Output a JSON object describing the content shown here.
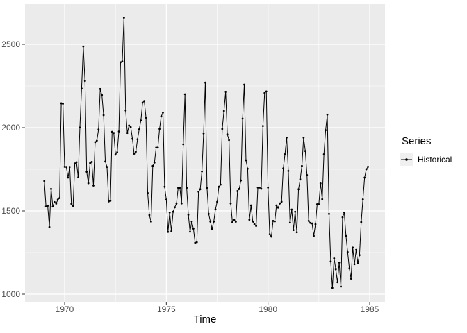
{
  "chart_data": {
    "type": "line",
    "title": "",
    "xlabel": "Time",
    "ylabel": "",
    "legend_title": "Series",
    "legend_position": "right",
    "grid": true,
    "x_start_year": 1969,
    "frequency": "monthly",
    "x_ticks": [
      1970,
      1975,
      1980,
      1985
    ],
    "x_minor_ticks": [
      1972.5,
      1977.5,
      1982.5
    ],
    "y_ticks": [
      1000,
      1500,
      2000,
      2500
    ],
    "y_minor_ticks": [
      1250,
      1750,
      2250
    ],
    "xlim": [
      1968.05,
      1985.75
    ],
    "ylim": [
      954,
      2742
    ],
    "series": [
      {
        "name": "Historical",
        "values": [
          1679,
          1527,
          1530,
          1403,
          1632,
          1526,
          1553,
          1544,
          1568,
          1577,
          2146,
          2143,
          1765,
          1764,
          1700,
          1764,
          1542,
          1530,
          1785,
          1792,
          1702,
          2001,
          2235,
          2487,
          2280,
          1735,
          1666,
          1787,
          1794,
          1652,
          1913,
          1922,
          1989,
          2232,
          2195,
          2075,
          1797,
          1764,
          1557,
          1561,
          1975,
          1968,
          1838,
          1852,
          1977,
          2392,
          2398,
          2660,
          2103,
          1968,
          2013,
          2003,
          1933,
          1843,
          1855,
          1930,
          1990,
          2043,
          2150,
          2160,
          2060,
          1607,
          1475,
          1436,
          1770,
          1790,
          1880,
          1880,
          1992,
          2068,
          2090,
          1645,
          1568,
          1374,
          1490,
          1378,
          1495,
          1522,
          1545,
          1638,
          1638,
          1545,
          1900,
          2200,
          1638,
          1477,
          1375,
          1436,
          1393,
          1309,
          1312,
          1615,
          1630,
          1737,
          1965,
          2270,
          1638,
          1482,
          1436,
          1392,
          1436,
          1510,
          1554,
          1645,
          1658,
          1992,
          2100,
          2215,
          1960,
          1925,
          1545,
          1432,
          1448,
          1435,
          1619,
          1632,
          1683,
          2054,
          2258,
          1804,
          1753,
          1447,
          1533,
          1437,
          1420,
          1410,
          1640,
          1640,
          1633,
          2010,
          2208,
          2217,
          1640,
          1360,
          1346,
          1440,
          1437,
          1533,
          1520,
          1545,
          1555,
          1755,
          1840,
          1940,
          1740,
          1430,
          1508,
          1385,
          1495,
          1372,
          1630,
          1690,
          1770,
          1940,
          1860,
          1715,
          1440,
          1428,
          1425,
          1350,
          1420,
          1540,
          1540,
          1665,
          1570,
          1840,
          1985,
          2078,
          1482,
          1197,
          1038,
          1215,
          1149,
          1072,
          1190,
          1046,
          1462,
          1490,
          1350,
          1253,
          1155,
          1093,
          1280,
          1180,
          1266,
          1186,
          1235,
          1433,
          1569,
          1700,
          1750,
          1765
        ]
      }
    ]
  },
  "colors": {
    "background": "#ffffff",
    "panel_bg": "#ebebeb",
    "grid_major": "#ffffff",
    "grid_minor": "#ffffff",
    "series_line": "#000000",
    "series_point": "#000000",
    "tick_text": "#4d4d4d",
    "tick_mark": "#333333",
    "axis_title_text": "#000000",
    "legend_key_bg": "#f0f0f0"
  }
}
